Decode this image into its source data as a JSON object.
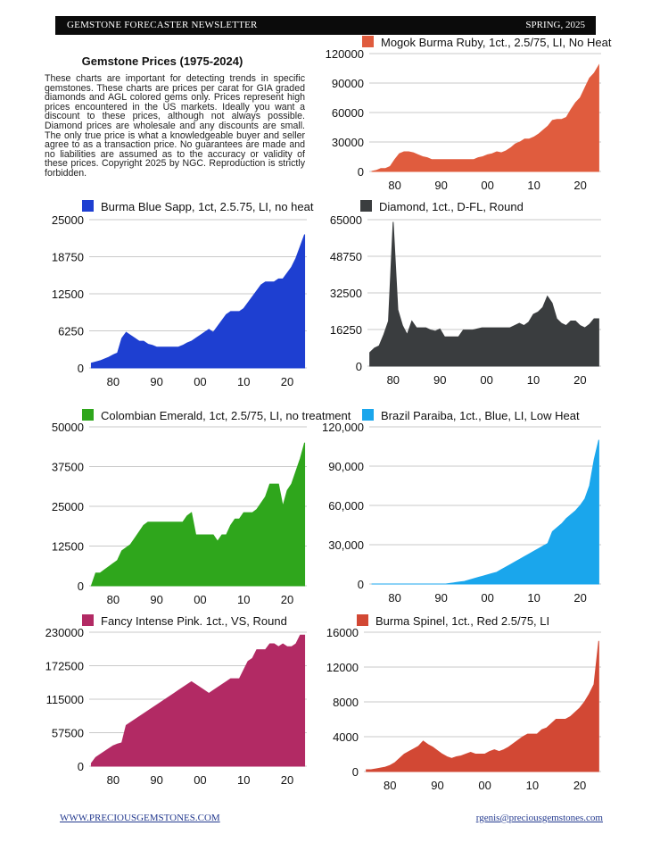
{
  "header": {
    "title": "GEMSTONE FORECASTER NEWSLETTER",
    "issue": "SPRING, 2025"
  },
  "intro": {
    "title": "Gemstone Prices (1975-2024)",
    "body": "These charts are important for detecting trends in specific gemstones. These charts are prices per carat for GIA graded diamonds and AGL colored gems only. Prices represent high prices encountered in the US markets. Ideally you want a discount to these prices, although not always possible. Diamond prices are wholesale and any discounts are small. The only true price is what a knowledgeable buyer and seller agree to as a transaction price. No guarantees are made and no liabilities are assumed as to the accuracy or validity of these prices. Copyright 2025 by NGC. Reproduction is strictly forbidden."
  },
  "footer": {
    "website": "WWW.PRECIOUSGEMSTONES.COM",
    "email": "rgenis@preciousgemstones.com"
  },
  "chart_data": [
    {
      "id": "ruby",
      "type": "area",
      "color": "#e05c3e",
      "legend": "Mogok Burma Ruby, 1ct., 2.5/75, LI, No Heat",
      "x": [
        1975,
        1976,
        1977,
        1978,
        1979,
        1980,
        1981,
        1982,
        1983,
        1984,
        1985,
        1986,
        1987,
        1988,
        1989,
        1990,
        1991,
        1992,
        1993,
        1994,
        1995,
        1996,
        1997,
        1998,
        1999,
        2000,
        2001,
        2002,
        2003,
        2004,
        2005,
        2006,
        2007,
        2008,
        2009,
        2010,
        2011,
        2012,
        2013,
        2014,
        2015,
        2016,
        2017,
        2018,
        2019,
        2020,
        2021,
        2022,
        2023,
        2024
      ],
      "values": [
        0,
        1000,
        3000,
        3000,
        5000,
        12000,
        18000,
        20000,
        20000,
        19000,
        17000,
        15000,
        14000,
        12000,
        12000,
        12000,
        12000,
        12000,
        12000,
        12000,
        12000,
        12000,
        12000,
        14000,
        15000,
        17000,
        18000,
        20000,
        19000,
        21000,
        24000,
        28000,
        30000,
        33000,
        33000,
        35000,
        38000,
        42000,
        46000,
        52000,
        53000,
        53000,
        55000,
        63000,
        70000,
        75000,
        85000,
        95000,
        100000,
        108000
      ],
      "ylim": [
        0,
        120000
      ],
      "yticks": [
        0,
        30000,
        60000,
        90000,
        120000
      ],
      "ytick_labels": [
        "0",
        "30000",
        "60000",
        "90000",
        "120000"
      ],
      "xtick_labels": [
        "80",
        "90",
        "00",
        "10",
        "20"
      ],
      "xtick_years": [
        1980,
        1990,
        2000,
        2010,
        2020
      ]
    },
    {
      "id": "sapphire",
      "type": "area",
      "color": "#1e3fd1",
      "legend": "Burma Blue Sapp, 1ct, 2.5.75, LI, no heat",
      "x": [
        1975,
        1976,
        1977,
        1978,
        1979,
        1980,
        1981,
        1982,
        1983,
        1984,
        1985,
        1986,
        1987,
        1988,
        1989,
        1990,
        1991,
        1992,
        1993,
        1994,
        1995,
        1996,
        1997,
        1998,
        1999,
        2000,
        2001,
        2002,
        2003,
        2004,
        2005,
        2006,
        2007,
        2008,
        2009,
        2010,
        2011,
        2012,
        2013,
        2014,
        2015,
        2016,
        2017,
        2018,
        2019,
        2020,
        2021,
        2022,
        2023,
        2024
      ],
      "values": [
        800,
        1000,
        1200,
        1500,
        1800,
        2200,
        2500,
        5000,
        6000,
        5500,
        5000,
        4500,
        4500,
        4000,
        3800,
        3500,
        3500,
        3500,
        3500,
        3500,
        3500,
        3800,
        4200,
        4500,
        5000,
        5500,
        6000,
        6500,
        6000,
        7000,
        8000,
        9000,
        9500,
        9500,
        9500,
        10000,
        11000,
        12000,
        13000,
        14000,
        14500,
        14500,
        14500,
        15000,
        15000,
        16000,
        17000,
        18500,
        20500,
        22500
      ],
      "ylim": [
        0,
        25000
      ],
      "yticks": [
        0,
        6250,
        12500,
        18750,
        25000
      ],
      "ytick_labels": [
        "0",
        "6250",
        "12500",
        "18750",
        "25000"
      ],
      "xtick_labels": [
        "80",
        "90",
        "00",
        "10",
        "20"
      ],
      "xtick_years": [
        1980,
        1990,
        2000,
        2010,
        2020
      ]
    },
    {
      "id": "diamond",
      "type": "area",
      "color": "#3a3d3f",
      "legend": "Diamond, 1ct., D-FL, Round",
      "x": [
        1975,
        1976,
        1977,
        1978,
        1979,
        1980,
        1981,
        1982,
        1983,
        1984,
        1985,
        1986,
        1987,
        1988,
        1989,
        1990,
        1991,
        1992,
        1993,
        1994,
        1995,
        1996,
        1997,
        1998,
        1999,
        2000,
        2001,
        2002,
        2003,
        2004,
        2005,
        2006,
        2007,
        2008,
        2009,
        2010,
        2011,
        2012,
        2013,
        2014,
        2015,
        2016,
        2017,
        2018,
        2019,
        2020,
        2021,
        2022,
        2023,
        2024
      ],
      "values": [
        6000,
        8000,
        9000,
        14000,
        20000,
        64000,
        25000,
        18000,
        14000,
        20000,
        17000,
        17000,
        17000,
        16000,
        15500,
        16500,
        13000,
        13000,
        13000,
        13000,
        16000,
        16000,
        16000,
        16500,
        17000,
        17000,
        17000,
        17000,
        17000,
        17000,
        17000,
        18000,
        19000,
        18000,
        19500,
        23000,
        24000,
        26000,
        31000,
        28000,
        21000,
        19000,
        18000,
        20000,
        20000,
        18000,
        17000,
        18500,
        21000,
        21000
      ],
      "ylim": [
        0,
        65000
      ],
      "yticks": [
        0,
        16250,
        32500,
        48750,
        65000
      ],
      "ytick_labels": [
        "0",
        "16250",
        "32500",
        "48750",
        "65000"
      ],
      "xtick_labels": [
        "80",
        "90",
        "00",
        "10",
        "20"
      ],
      "xtick_years": [
        1980,
        1990,
        2000,
        2010,
        2020
      ]
    },
    {
      "id": "emerald",
      "type": "area",
      "color": "#2fa61c",
      "legend": "Colombian Emerald, 1ct, 2.5/75, LI, no treatment",
      "x": [
        1975,
        1976,
        1977,
        1978,
        1979,
        1980,
        1981,
        1982,
        1983,
        1984,
        1985,
        1986,
        1987,
        1988,
        1989,
        1990,
        1991,
        1992,
        1993,
        1994,
        1995,
        1996,
        1997,
        1998,
        1999,
        2000,
        2001,
        2002,
        2003,
        2004,
        2005,
        2006,
        2007,
        2008,
        2009,
        2010,
        2011,
        2012,
        2013,
        2014,
        2015,
        2016,
        2017,
        2018,
        2019,
        2020,
        2021,
        2022,
        2023,
        2024
      ],
      "values": [
        0,
        4000,
        4000,
        5000,
        6000,
        7000,
        8000,
        11000,
        12000,
        13000,
        15000,
        17000,
        19000,
        20000,
        20000,
        20000,
        20000,
        20000,
        20000,
        20000,
        20000,
        20000,
        22000,
        23000,
        16000,
        16000,
        16000,
        16000,
        16000,
        14000,
        16000,
        16000,
        19000,
        21000,
        21000,
        23000,
        23000,
        23000,
        24000,
        26000,
        28000,
        32000,
        32000,
        32000,
        25000,
        30000,
        32000,
        36000,
        40000,
        45000
      ],
      "ylim": [
        0,
        50000
      ],
      "yticks": [
        0,
        12500,
        25000,
        37500,
        50000
      ],
      "ytick_labels": [
        "0",
        "12500",
        "25000",
        "37500",
        "50000"
      ],
      "xtick_labels": [
        "80",
        "90",
        "00",
        "10",
        "20"
      ],
      "xtick_years": [
        1980,
        1990,
        2000,
        2010,
        2020
      ]
    },
    {
      "id": "paraiba",
      "type": "area",
      "color": "#1aa6ec",
      "legend": "Brazil Paraiba, 1ct., Blue, LI, Low Heat",
      "x": [
        1975,
        1976,
        1977,
        1978,
        1979,
        1980,
        1981,
        1982,
        1983,
        1984,
        1985,
        1986,
        1987,
        1988,
        1989,
        1990,
        1991,
        1992,
        1993,
        1994,
        1995,
        1996,
        1997,
        1998,
        1999,
        2000,
        2001,
        2002,
        2003,
        2004,
        2005,
        2006,
        2007,
        2008,
        2009,
        2010,
        2011,
        2012,
        2013,
        2014,
        2015,
        2016,
        2017,
        2018,
        2019,
        2020,
        2021,
        2022,
        2023,
        2024
      ],
      "values": [
        0,
        0,
        0,
        0,
        0,
        0,
        0,
        0,
        0,
        0,
        0,
        0,
        0,
        0,
        0,
        0,
        0,
        500,
        1000,
        1500,
        2000,
        3000,
        4000,
        5000,
        6000,
        7000,
        8000,
        9000,
        11000,
        13000,
        15000,
        17000,
        19000,
        21000,
        23000,
        25000,
        27000,
        29000,
        31000,
        40000,
        43000,
        46000,
        50000,
        53000,
        56000,
        60000,
        65000,
        75000,
        95000,
        110000
      ],
      "ylim": [
        0,
        120000
      ],
      "yticks": [
        0,
        30000,
        60000,
        90000,
        120000
      ],
      "ytick_labels": [
        "0",
        "30,000",
        "60,000",
        "90,000",
        "120,000"
      ],
      "xtick_labels": [
        "80",
        "90",
        "00",
        "10",
        "20"
      ],
      "xtick_years": [
        1980,
        1990,
        2000,
        2010,
        2020
      ]
    },
    {
      "id": "pink",
      "type": "area",
      "color": "#b22a64",
      "legend": "Fancy Intense Pink. 1ct., VS, Round",
      "x": [
        1975,
        1976,
        1977,
        1978,
        1979,
        1980,
        1981,
        1982,
        1983,
        1984,
        1985,
        1986,
        1987,
        1988,
        1989,
        1990,
        1991,
        1992,
        1993,
        1994,
        1995,
        1996,
        1997,
        1998,
        1999,
        2000,
        2001,
        2002,
        2003,
        2004,
        2005,
        2006,
        2007,
        2008,
        2009,
        2010,
        2011,
        2012,
        2013,
        2014,
        2015,
        2016,
        2017,
        2018,
        2019,
        2020,
        2021,
        2022,
        2023,
        2024
      ],
      "values": [
        5000,
        15000,
        20000,
        25000,
        30000,
        35000,
        38000,
        40000,
        70000,
        75000,
        80000,
        85000,
        90000,
        95000,
        100000,
        105000,
        110000,
        115000,
        120000,
        125000,
        130000,
        135000,
        140000,
        145000,
        140000,
        135000,
        130000,
        125000,
        130000,
        135000,
        140000,
        145000,
        150000,
        150000,
        150000,
        165000,
        180000,
        185000,
        200000,
        200000,
        200000,
        210000,
        210000,
        205000,
        210000,
        205000,
        205000,
        210000,
        225000,
        225000
      ],
      "ylim": [
        0,
        230000
      ],
      "yticks": [
        0,
        57500,
        115000,
        172500,
        230000
      ],
      "ytick_labels": [
        "0",
        "57500",
        "115000",
        "172500",
        "230000"
      ],
      "xtick_labels": [
        "80",
        "90",
        "00",
        "10",
        "20"
      ],
      "xtick_years": [
        1980,
        1990,
        2000,
        2010,
        2020
      ]
    },
    {
      "id": "spinel",
      "type": "area",
      "color": "#d24834",
      "legend": "Burma Spinel, 1ct., Red 2.5/75, LI",
      "x": [
        1975,
        1976,
        1977,
        1978,
        1979,
        1980,
        1981,
        1982,
        1983,
        1984,
        1985,
        1986,
        1987,
        1988,
        1989,
        1990,
        1991,
        1992,
        1993,
        1994,
        1995,
        1996,
        1997,
        1998,
        1999,
        2000,
        2001,
        2002,
        2003,
        2004,
        2005,
        2006,
        2007,
        2008,
        2009,
        2010,
        2011,
        2012,
        2013,
        2014,
        2015,
        2016,
        2017,
        2018,
        2019,
        2020,
        2021,
        2022,
        2023,
        2024
      ],
      "values": [
        200,
        200,
        300,
        400,
        500,
        700,
        1000,
        1500,
        2000,
        2300,
        2600,
        2900,
        3500,
        3100,
        2800,
        2400,
        2000,
        1700,
        1500,
        1700,
        1800,
        2000,
        2200,
        2000,
        2000,
        2000,
        2300,
        2500,
        2300,
        2500,
        2800,
        3200,
        3600,
        4000,
        4300,
        4300,
        4300,
        4800,
        5000,
        5500,
        6000,
        6000,
        6000,
        6300,
        6800,
        7300,
        8000,
        8900,
        10000,
        15000
      ],
      "ylim": [
        0,
        16000
      ],
      "yticks": [
        0,
        4000,
        8000,
        12000,
        16000
      ],
      "ytick_labels": [
        "0",
        "4000",
        "8000",
        "12000",
        "16000"
      ],
      "xtick_labels": [
        "80",
        "90",
        "00",
        "10",
        "20"
      ],
      "xtick_years": [
        1980,
        1990,
        2000,
        2010,
        2020
      ]
    }
  ]
}
